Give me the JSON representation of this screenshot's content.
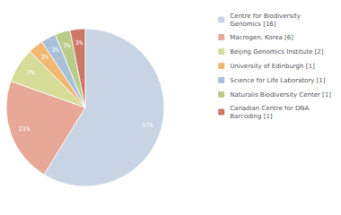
{
  "chart_data": {
    "type": "pie",
    "categories": [
      "Centre for Biodiversity\nGenomics [16]",
      "Macrogen, Korea [6]",
      "Beijing Genomics Institute [2]",
      "University of Edinburgh [1]",
      "Science for Life Laboratory [1]",
      "Naturalis Biodiversity Center [1]",
      "Canadian Centre for DNA\nBarcoding [1]"
    ],
    "values": [
      57,
      21,
      7,
      3,
      3,
      3,
      3
    ],
    "value_labels": [
      "57%",
      "21%",
      "7%",
      "3%",
      "3%",
      "3%",
      "3%"
    ],
    "data_labels": true,
    "colors": [
      "#c8d4e3",
      "#e8a898",
      "#d4dc98",
      "#f0b870",
      "#a8c0d8",
      "#b8cc88",
      "#cc7868"
    ],
    "legend": "upper right"
  }
}
